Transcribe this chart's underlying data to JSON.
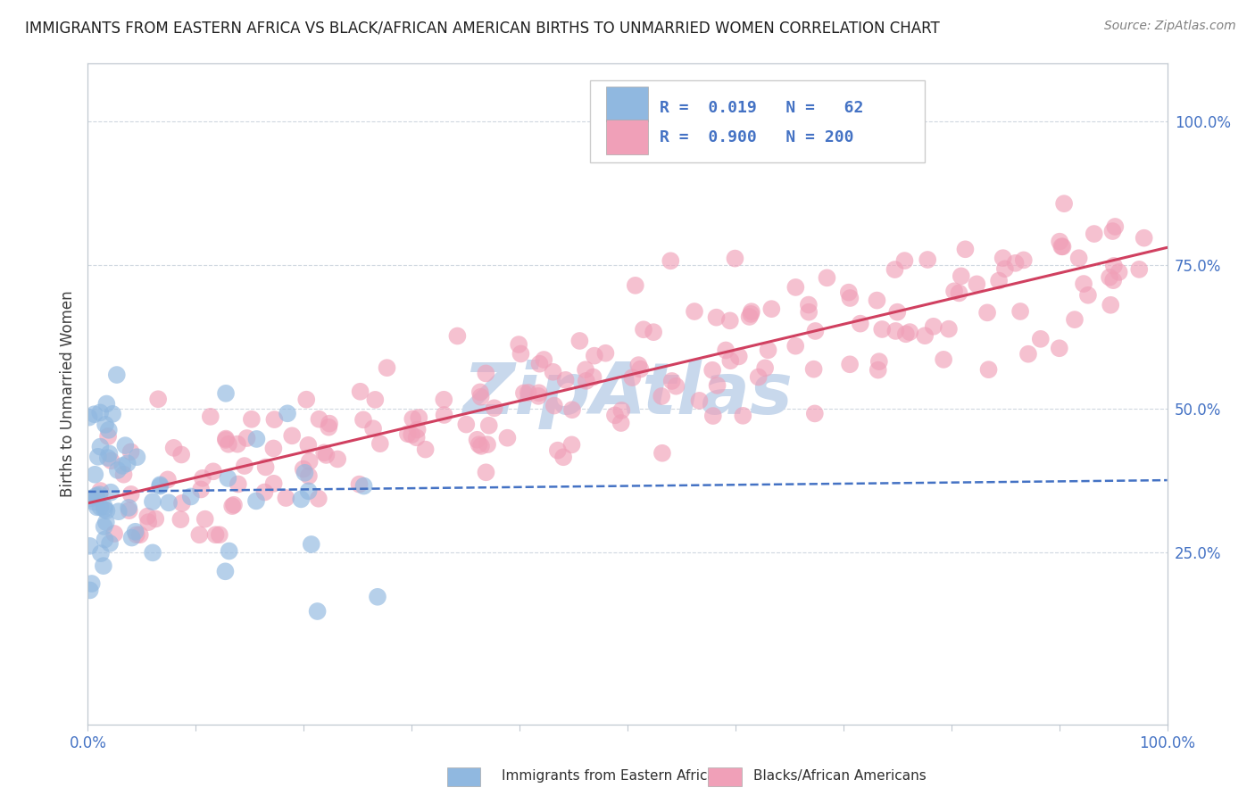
{
  "title": "IMMIGRANTS FROM EASTERN AFRICA VS BLACK/AFRICAN AMERICAN BIRTHS TO UNMARRIED WOMEN CORRELATION CHART",
  "source": "Source: ZipAtlas.com",
  "ylabel": "Births to Unmarried Women",
  "legend_label_blue": "Immigrants from Eastern Africa",
  "legend_label_pink": "Blacks/African Americans",
  "R_blue": 0.019,
  "N_blue": 62,
  "R_pink": 0.9,
  "N_pink": 200,
  "blue_color": "#90b8e0",
  "pink_color": "#f0a0b8",
  "blue_line_color": "#4472c4",
  "pink_line_color": "#d04060",
  "watermark_color": "#c8d8ec",
  "background_color": "#ffffff",
  "grid_color": "#d0d8e0",
  "title_color": "#202020",
  "source_color": "#808080",
  "axis_label_color": "#404040",
  "tick_label_color": "#4472c4",
  "xlim": [
    0.0,
    1.0
  ],
  "ylim": [
    -0.05,
    1.1
  ],
  "yticks": [
    0.25,
    0.5,
    0.75,
    1.0
  ],
  "ytick_labels": [
    "25.0%",
    "50.0%",
    "75.0%",
    "100.0%"
  ],
  "blue_trend_x0": 0.0,
  "blue_trend_y0": 0.355,
  "blue_trend_x1": 1.0,
  "blue_trend_y1": 0.375,
  "pink_trend_x0": 0.0,
  "pink_trend_y0": 0.335,
  "pink_trend_x1": 1.0,
  "pink_trend_y1": 0.78
}
